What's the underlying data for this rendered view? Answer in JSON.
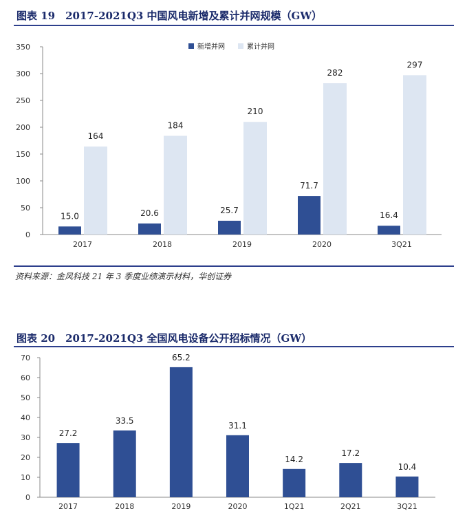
{
  "figure1": {
    "title": "图表 19　2017-2021Q3 中国风电新增及累计并网规模（GW）",
    "source": "资料来源：金风科技 21 年 3 季度业绩演示材料，华创证券"
  },
  "figure2": {
    "title": "图表 20　2017-2021Q3 全国风电设备公开招标情况（GW）"
  },
  "colors": {
    "dark_bar": "#2f4f94",
    "light_bar": "#dde6f2",
    "rule": "#2d3f8c"
  },
  "chart_data": [
    {
      "type": "bar",
      "categories": [
        "2017",
        "2018",
        "2019",
        "2020",
        "3Q21"
      ],
      "series": [
        {
          "name": "新增并网",
          "values": [
            15.0,
            20.6,
            25.7,
            71.7,
            16.4
          ],
          "labels": [
            "15.0",
            "20.6",
            "25.7",
            "71.7",
            "16.4"
          ]
        },
        {
          "name": "累计并网",
          "values": [
            164,
            184,
            210,
            282,
            297
          ],
          "labels": [
            "164",
            "184",
            "210",
            "282",
            "297"
          ]
        }
      ],
      "ylim": [
        0,
        350
      ],
      "yticks": [
        0,
        50,
        100,
        150,
        200,
        250,
        300,
        350
      ],
      "legend": "top-center"
    },
    {
      "type": "bar",
      "categories": [
        "2017",
        "2018",
        "2019",
        "2020",
        "1Q21",
        "2Q21",
        "3Q21"
      ],
      "values": [
        27.2,
        33.5,
        65.2,
        31.1,
        14.2,
        17.2,
        10.4
      ],
      "labels": [
        "27.2",
        "33.5",
        "65.2",
        "31.1",
        "14.2",
        "17.2",
        "10.4"
      ],
      "ylim": [
        0,
        70
      ],
      "yticks": [
        0,
        10,
        20,
        30,
        40,
        50,
        60,
        70
      ]
    }
  ]
}
